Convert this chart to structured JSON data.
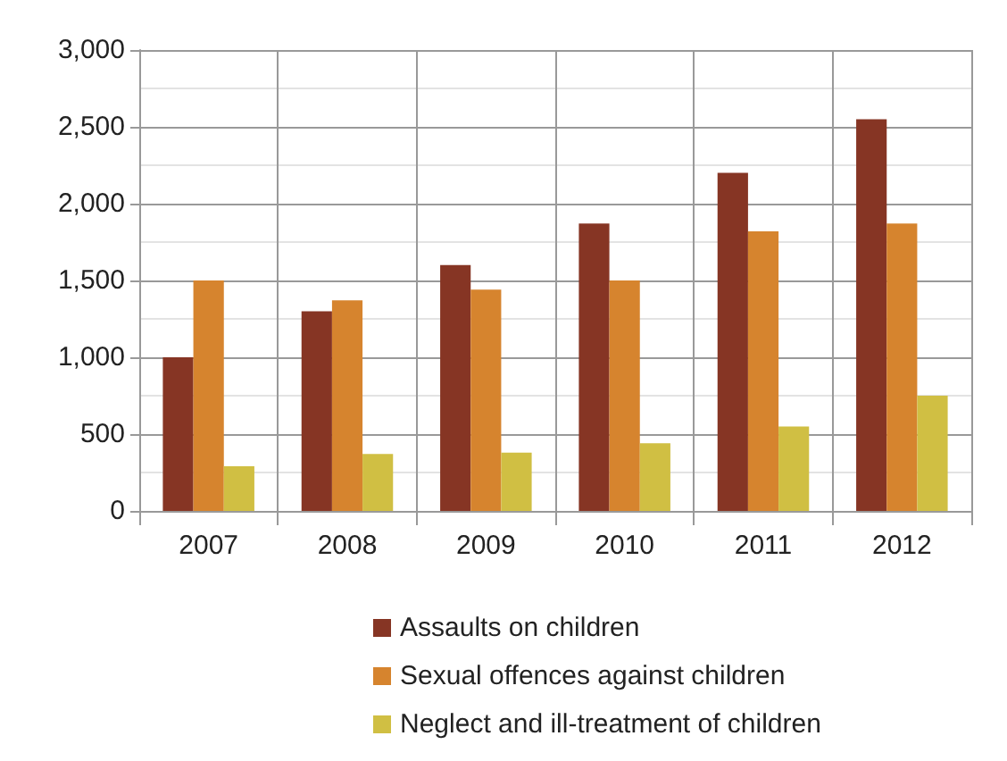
{
  "chart_data": {
    "type": "bar",
    "categories": [
      "2007",
      "2008",
      "2009",
      "2010",
      "2011",
      "2012"
    ],
    "series": [
      {
        "name": "Assaults on children",
        "color": "#863524",
        "values": [
          1000,
          1300,
          1600,
          1870,
          2200,
          2550
        ]
      },
      {
        "name": "Sexual offences against children",
        "color": "#d6842e",
        "values": [
          1500,
          1370,
          1440,
          1500,
          1820,
          1870
        ]
      },
      {
        "name": "Neglect and ill-treatment of children",
        "color": "#d0bf43",
        "values": [
          290,
          370,
          380,
          440,
          550,
          750
        ]
      }
    ],
    "ylim": [
      0,
      3000
    ],
    "yticks": [
      0,
      500,
      {
        "value": 1000,
        "label": "1,000"
      },
      {
        "value": 1500,
        "label": "1,500"
      },
      {
        "value": 2000,
        "label": "2,000"
      },
      {
        "value": 2500,
        "label": "2,500"
      },
      {
        "value": 3000,
        "label": "3,000"
      }
    ],
    "grid": true,
    "legend": "bottom"
  }
}
